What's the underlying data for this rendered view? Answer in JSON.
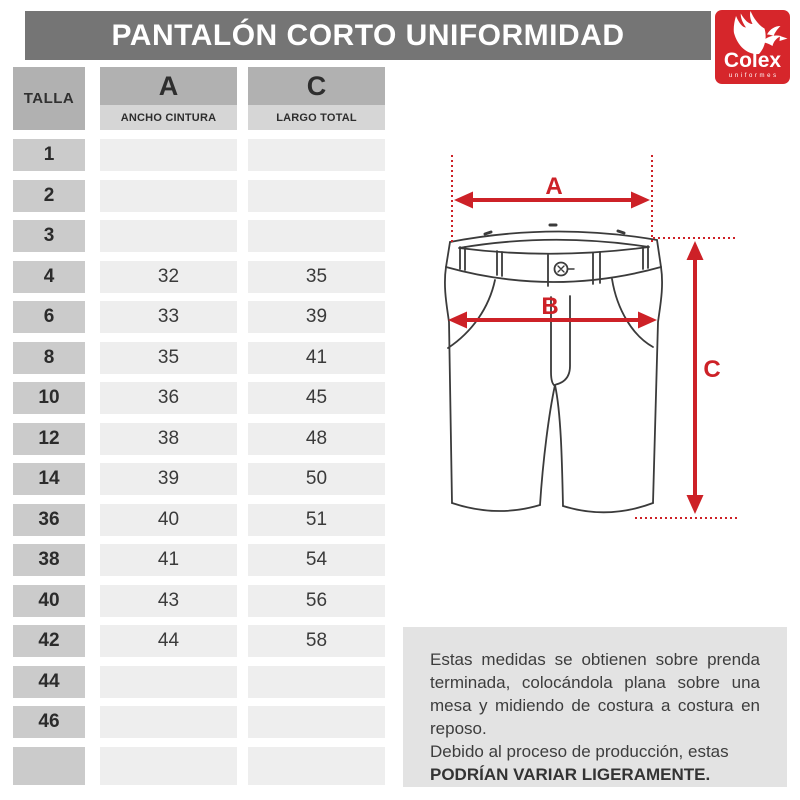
{
  "header": {
    "title": "PANTALÓN CORTO UNIFORMIDAD"
  },
  "logo": {
    "brand": "Colex",
    "tagline": "uniformes",
    "color": "#d6262b"
  },
  "table": {
    "size_header": "TALLA",
    "columns": [
      {
        "letter": "A",
        "label": "ANCHO CINTURA"
      },
      {
        "letter": "C",
        "label": "LARGO TOTAL"
      }
    ],
    "rows": [
      {
        "talla": "1",
        "a": "",
        "c": ""
      },
      {
        "talla": "2",
        "a": "",
        "c": ""
      },
      {
        "talla": "3",
        "a": "",
        "c": ""
      },
      {
        "talla": "4",
        "a": "32",
        "c": "35"
      },
      {
        "talla": "6",
        "a": "33",
        "c": "39"
      },
      {
        "talla": "8",
        "a": "35",
        "c": "41"
      },
      {
        "talla": "10",
        "a": "36",
        "c": "45"
      },
      {
        "talla": "12",
        "a": "38",
        "c": "48"
      },
      {
        "talla": "14",
        "a": "39",
        "c": "50"
      },
      {
        "talla": "36",
        "a": "40",
        "c": "51"
      },
      {
        "talla": "38",
        "a": "41",
        "c": "54"
      },
      {
        "talla": "40",
        "a": "43",
        "c": "56"
      },
      {
        "talla": "42",
        "a": "44",
        "c": "58"
      },
      {
        "talla": "44",
        "a": "",
        "c": ""
      },
      {
        "talla": "46",
        "a": "",
        "c": ""
      },
      {
        "talla": "",
        "a": "",
        "c": ""
      }
    ]
  },
  "diagram": {
    "label_a": "A",
    "label_b": "B",
    "label_c": "C",
    "arrow_color": "#cd2127"
  },
  "note": {
    "p1": "Estas medidas se obtienen sobre prenda terminada, colocándola plana sobre una mesa y midiendo de costura a costura en reposo.",
    "p2": "Debido al proceso de producción, estas",
    "p2_bold": "PODRÍAN VARIAR LIGERAMENTE."
  },
  "colors": {
    "title_bar": "#757575",
    "header_dark": "#b1b1b1",
    "header_light": "#d6d6d6",
    "size_cell": "#cbcbcb",
    "value_cell": "#eeeeee",
    "note_bg": "#e3e3e3",
    "accent_red": "#cd2127"
  }
}
